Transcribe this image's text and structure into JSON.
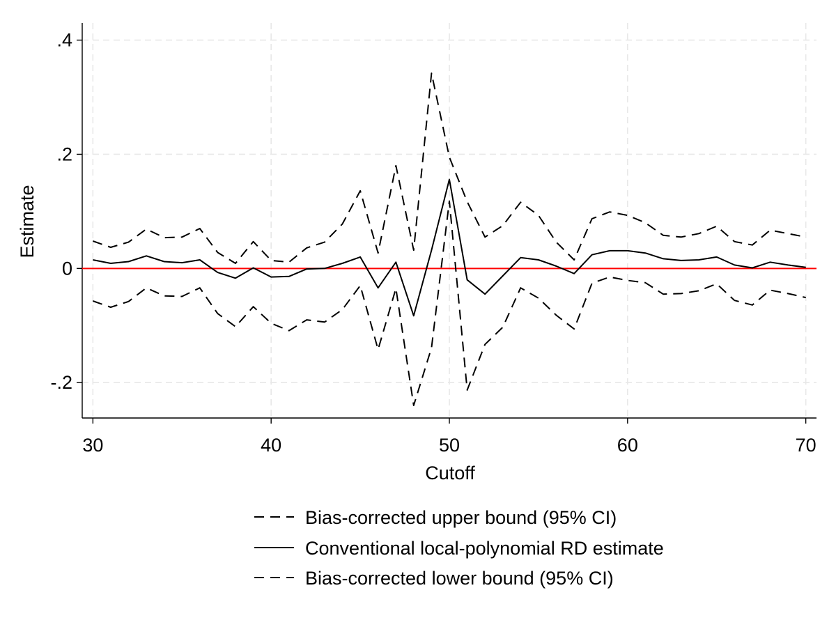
{
  "chart_data": {
    "type": "line",
    "xlabel": "Cutoff",
    "ylabel": "Estimate",
    "xlim": [
      29.4,
      70.6
    ],
    "ylim": [
      -0.262,
      0.43
    ],
    "x_ticks": [
      30,
      40,
      50,
      60,
      70
    ],
    "x_tick_labels": [
      "30",
      "40",
      "50",
      "60",
      "70"
    ],
    "y_ticks": [
      -0.2,
      0,
      0.2,
      0.4
    ],
    "y_tick_labels": [
      "-.2",
      "0",
      ".2",
      ".4"
    ],
    "grid": true,
    "legend_position": "bottom",
    "reference_line": {
      "y": 0,
      "color": "#ff0000"
    },
    "x": [
      30,
      31,
      32,
      33,
      34,
      35,
      36,
      37,
      38,
      39,
      40,
      41,
      42,
      43,
      44,
      45,
      46,
      47,
      48,
      49,
      50,
      51,
      52,
      53,
      54,
      55,
      56,
      57,
      58,
      59,
      60,
      61,
      62,
      63,
      64,
      65,
      66,
      67,
      68,
      69,
      70
    ],
    "series": [
      {
        "name": "Bias-corrected upper bound (95% CI)",
        "style": "dashed",
        "color": "#000000",
        "values": [
          0.048,
          0.037,
          0.046,
          0.069,
          0.054,
          0.055,
          0.07,
          0.028,
          0.009,
          0.047,
          0.014,
          0.011,
          0.036,
          0.046,
          0.078,
          0.136,
          0.027,
          0.18,
          0.032,
          0.342,
          0.195,
          0.117,
          0.055,
          0.075,
          0.116,
          0.093,
          0.046,
          0.015,
          0.087,
          0.099,
          0.093,
          0.08,
          0.058,
          0.055,
          0.061,
          0.074,
          0.047,
          0.041,
          0.067,
          0.061,
          0.055
        ]
      },
      {
        "name": "Conventional local-polynomial RD estimate",
        "style": "solid",
        "color": "#000000",
        "values": [
          0.015,
          0.009,
          0.012,
          0.022,
          0.012,
          0.01,
          0.015,
          -0.007,
          -0.017,
          0.001,
          -0.015,
          -0.014,
          -0.001,
          0.0,
          0.009,
          0.02,
          -0.034,
          0.011,
          -0.083,
          0.032,
          0.156,
          -0.02,
          -0.045,
          -0.013,
          0.019,
          0.015,
          0.004,
          -0.009,
          0.024,
          0.031,
          0.031,
          0.027,
          0.017,
          0.014,
          0.015,
          0.02,
          0.006,
          0.001,
          0.011,
          0.006,
          0.002
        ]
      },
      {
        "name": "Bias-corrected lower bound (95% CI)",
        "style": "dashed",
        "color": "#000000",
        "values": [
          -0.057,
          -0.068,
          -0.058,
          -0.034,
          -0.048,
          -0.049,
          -0.034,
          -0.079,
          -0.102,
          -0.067,
          -0.096,
          -0.109,
          -0.09,
          -0.094,
          -0.072,
          -0.03,
          -0.142,
          -0.035,
          -0.24,
          -0.139,
          0.118,
          -0.213,
          -0.133,
          -0.103,
          -0.034,
          -0.052,
          -0.082,
          -0.106,
          -0.026,
          -0.015,
          -0.021,
          -0.025,
          -0.045,
          -0.044,
          -0.039,
          -0.027,
          -0.056,
          -0.064,
          -0.038,
          -0.044,
          -0.051
        ]
      }
    ]
  }
}
